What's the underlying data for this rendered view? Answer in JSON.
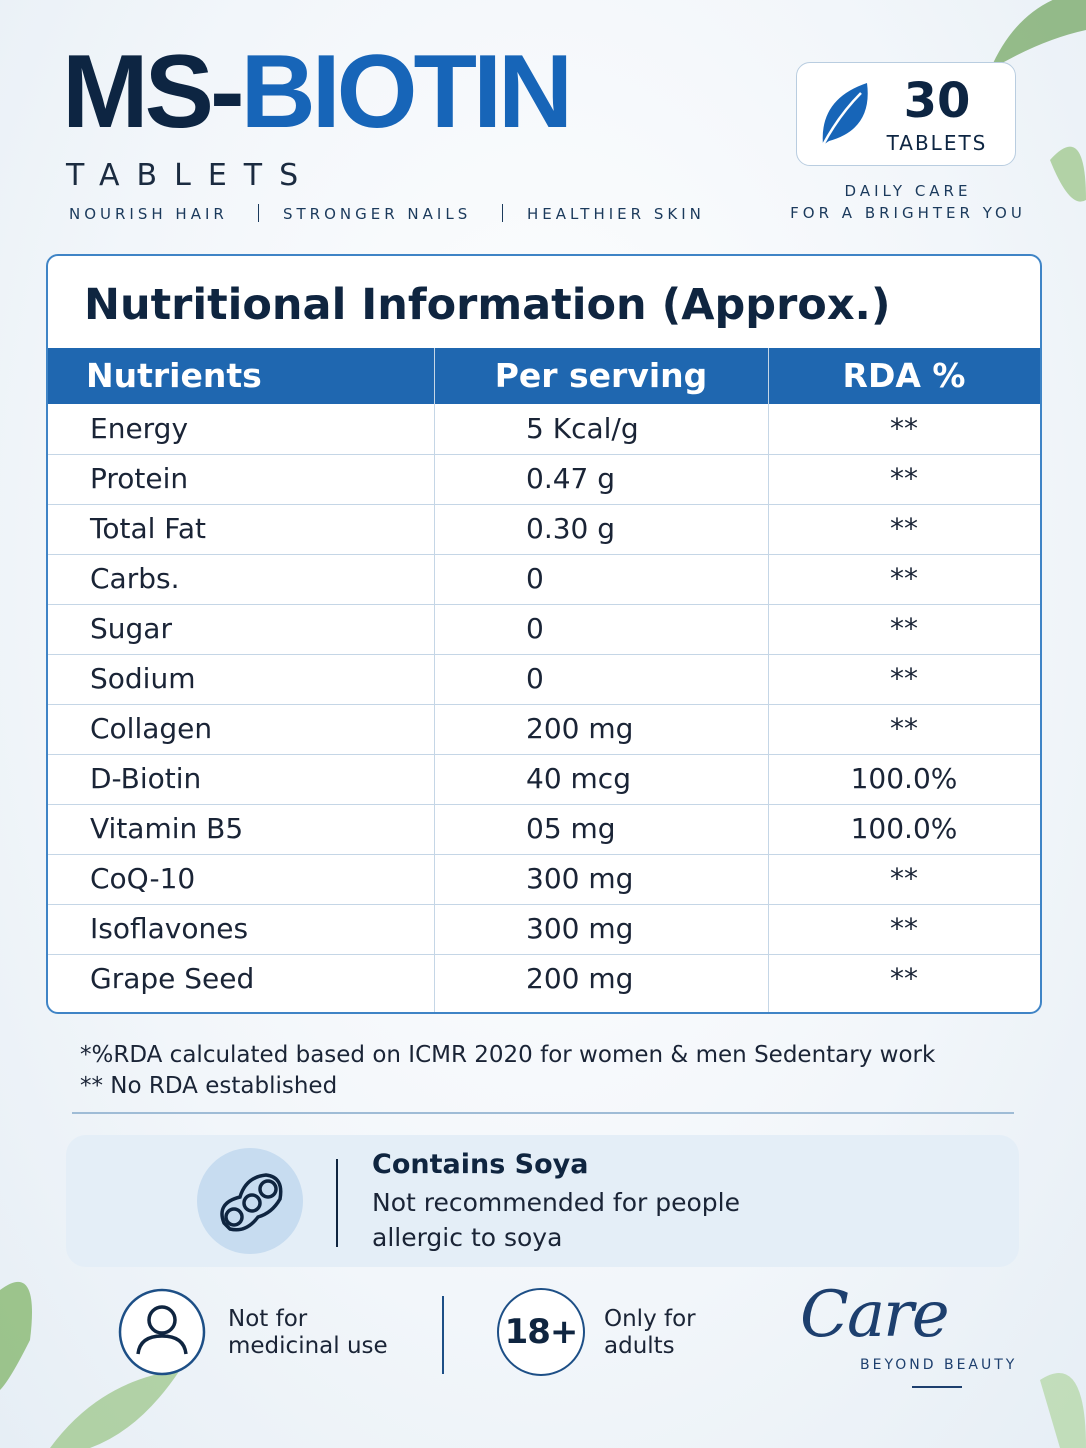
{
  "header": {
    "brand_dark": "MS-",
    "brand_blue": "BIOTIN",
    "subtitle": "TABLETS",
    "benefits": [
      "NOURISH HAIR",
      "STRONGER NAILS",
      "HEALTHIER SKIN"
    ]
  },
  "badge": {
    "count": "30",
    "unit": "TABLETS",
    "slogan": [
      "DAILY CARE",
      "FOR A BRIGHTER YOU"
    ]
  },
  "table": {
    "title": "Nutritional Information (Approx.)",
    "headers": [
      "Nutrients",
      "Per serving",
      "RDA %"
    ],
    "rows": [
      [
        "Energy",
        "5 Kcal/g",
        "**"
      ],
      [
        "Protein",
        "0.47 g",
        "**"
      ],
      [
        "Total Fat",
        "0.30 g",
        "**"
      ],
      [
        "Carbs.",
        "0",
        "**"
      ],
      [
        "Sugar",
        "0",
        "**"
      ],
      [
        "Sodium",
        "0",
        "**"
      ],
      [
        "Collagen",
        "200 mg",
        "**"
      ],
      [
        "D-Biotin",
        "40 mcg",
        "100.0%"
      ],
      [
        "Vitamin B5",
        "05 mg",
        "100.0%"
      ],
      [
        "CoQ-10",
        "300 mg",
        "**"
      ],
      [
        "Isoflavones",
        "300 mg",
        "**"
      ],
      [
        "Grape Seed",
        "200 mg",
        "**"
      ]
    ]
  },
  "notes": [
    "*%RDA calculated based on ICMR 2020 for women & men Sedentary work",
    "** No RDA established"
  ],
  "allergen": {
    "title": "Contains Soya",
    "text": "Not recommended for people allergic to soya"
  },
  "warnings": [
    {
      "label": "Not for medicinal use"
    },
    {
      "icon": "18+",
      "label": "Only for adults"
    }
  ],
  "signature": {
    "script": "Care",
    "tagline": "BEYOND BEAUTY"
  }
}
